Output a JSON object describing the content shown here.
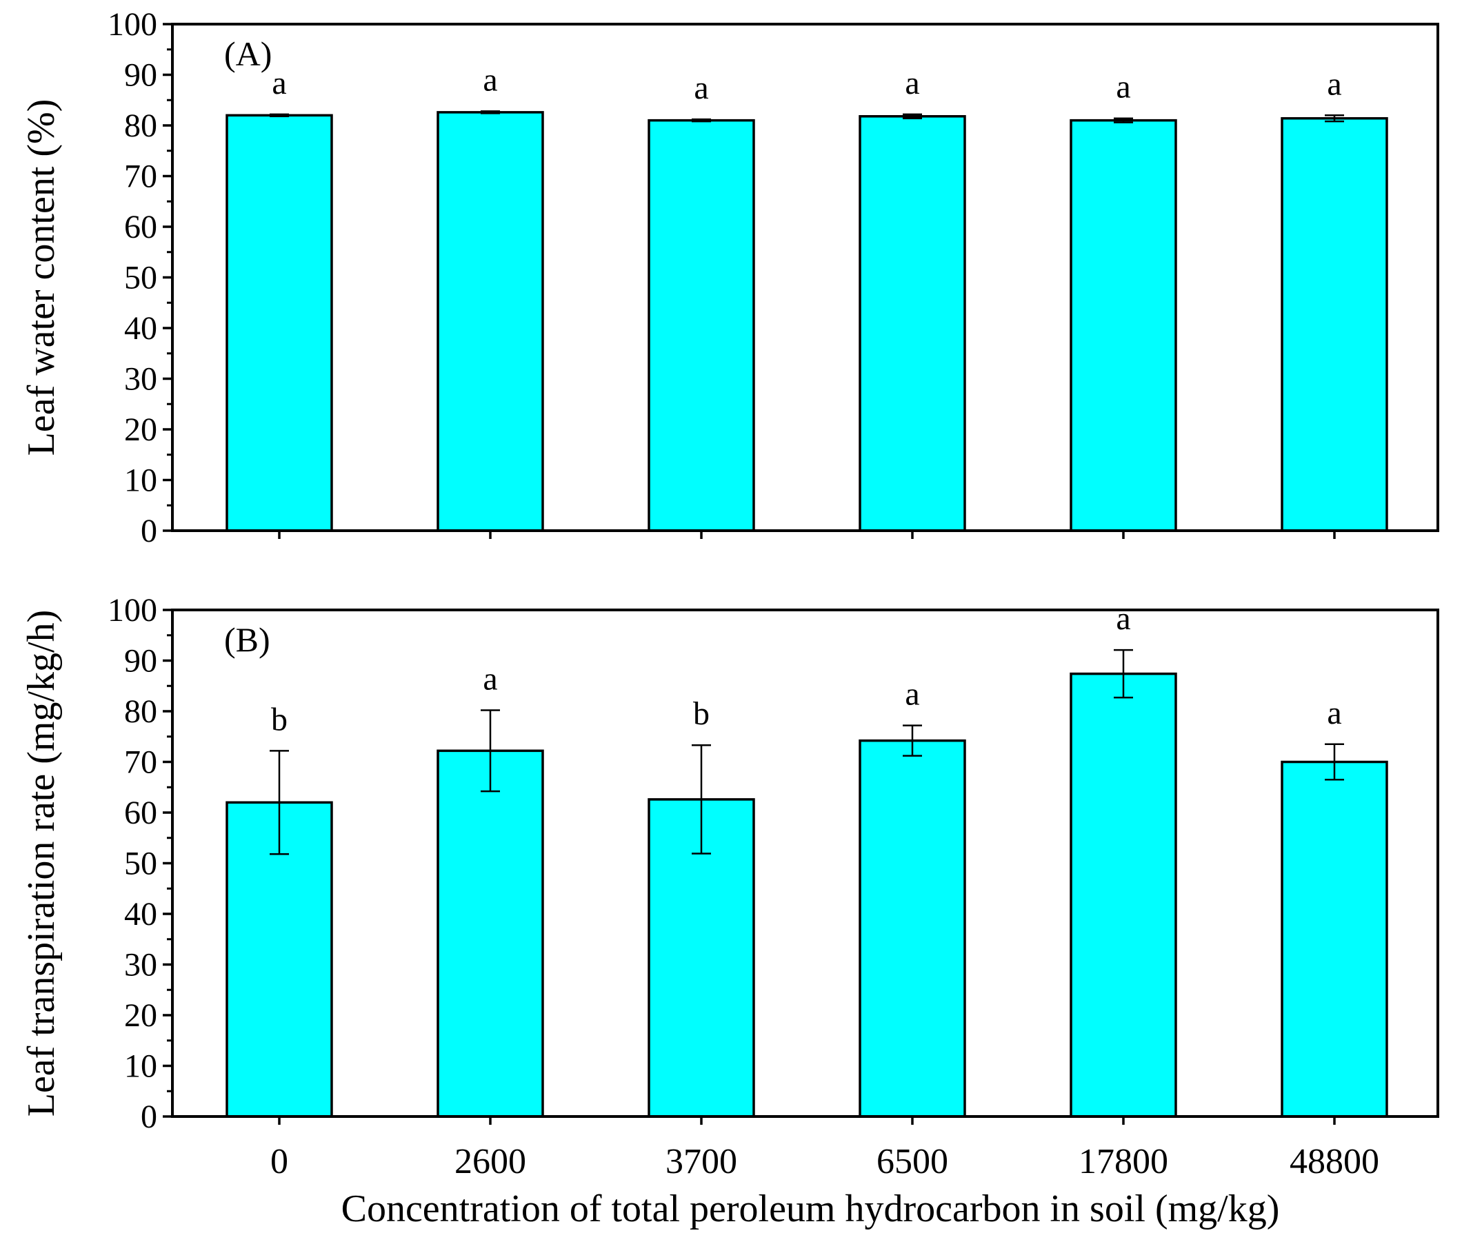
{
  "chart_data": [
    {
      "type": "bar",
      "panel_label": "(A)",
      "categories": [
        "0",
        "2600",
        "3700",
        "6500",
        "17800",
        "48800"
      ],
      "values": [
        82.0,
        82.6,
        81.0,
        81.8,
        81.0,
        81.4
      ],
      "errors": [
        0.2,
        0.2,
        0.2,
        0.4,
        0.4,
        0.6
      ],
      "significance": [
        "a",
        "a",
        "a",
        "a",
        "a",
        "a"
      ],
      "ylabel": "Leaf water content (%)",
      "xlabel": "",
      "ylim": [
        0,
        100
      ],
      "yticks": [
        0,
        10,
        20,
        30,
        40,
        50,
        60,
        70,
        80,
        90,
        100
      ],
      "bar_color": "#00ffff"
    },
    {
      "type": "bar",
      "panel_label": "(B)",
      "categories": [
        "0",
        "2600",
        "3700",
        "6500",
        "17800",
        "48800"
      ],
      "values": [
        62.0,
        72.2,
        62.6,
        74.2,
        87.4,
        70.0
      ],
      "errors": [
        10.2,
        8.0,
        10.7,
        3.0,
        4.7,
        3.5
      ],
      "significance": [
        "b",
        "a",
        "b",
        "a",
        "a",
        "a"
      ],
      "ylabel": "Leaf transpiration rate (mg/kg/h)",
      "xlabel": "Concentration of total peroleum hydrocarbon in soil (mg/kg)",
      "ylim": [
        0,
        100
      ],
      "yticks": [
        0,
        10,
        20,
        30,
        40,
        50,
        60,
        70,
        80,
        90,
        100
      ],
      "bar_color": "#00ffff"
    }
  ]
}
